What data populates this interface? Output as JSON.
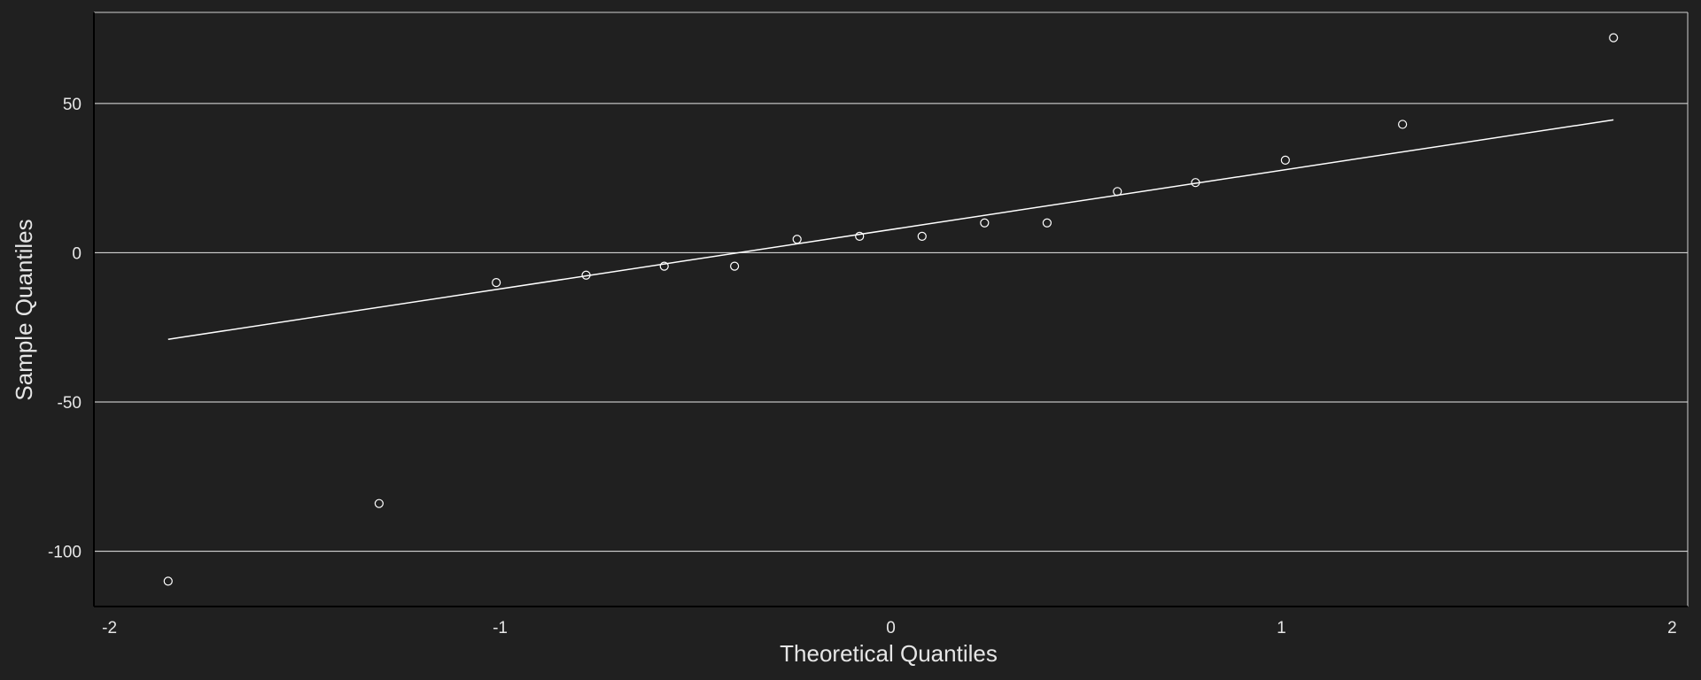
{
  "chart_data": {
    "type": "scatter",
    "title": "",
    "xlabel": "Theoretical Quantiles",
    "ylabel": "Sample Quantiles",
    "xlim": [
      -2.04,
      2.04
    ],
    "ylim": [
      -118.5,
      80.5
    ],
    "x_ticks": [
      -2,
      -1,
      0,
      1,
      2
    ],
    "x_tick_labels": [
      "-2",
      "-1",
      "0",
      "1",
      "2"
    ],
    "y_ticks": [
      -100,
      -50,
      0,
      50
    ],
    "y_tick_labels": [
      "-100",
      "-50",
      "0",
      "50"
    ],
    "grid": "horizontal",
    "legend": "none",
    "colors": {
      "background": "#202020",
      "points": "#ffffff",
      "line": "#ffffff",
      "grid": "#ffffff",
      "text": "#e6e6e6"
    },
    "series": [
      {
        "kind": "points",
        "x": [
          -1.85,
          -1.31,
          -1.01,
          -0.78,
          -0.58,
          -0.4,
          -0.24,
          -0.08,
          0.08,
          0.24,
          0.4,
          0.58,
          0.78,
          1.01,
          1.31,
          1.85
        ],
        "y": [
          -110,
          -84,
          -10,
          -7.5,
          -4.5,
          -4.5,
          4.5,
          5.5,
          5.5,
          10,
          10,
          20.5,
          23.5,
          31,
          43,
          72
        ]
      },
      {
        "kind": "line",
        "x": [
          -1.85,
          1.85
        ],
        "y": [
          -29,
          44.5
        ]
      }
    ]
  }
}
